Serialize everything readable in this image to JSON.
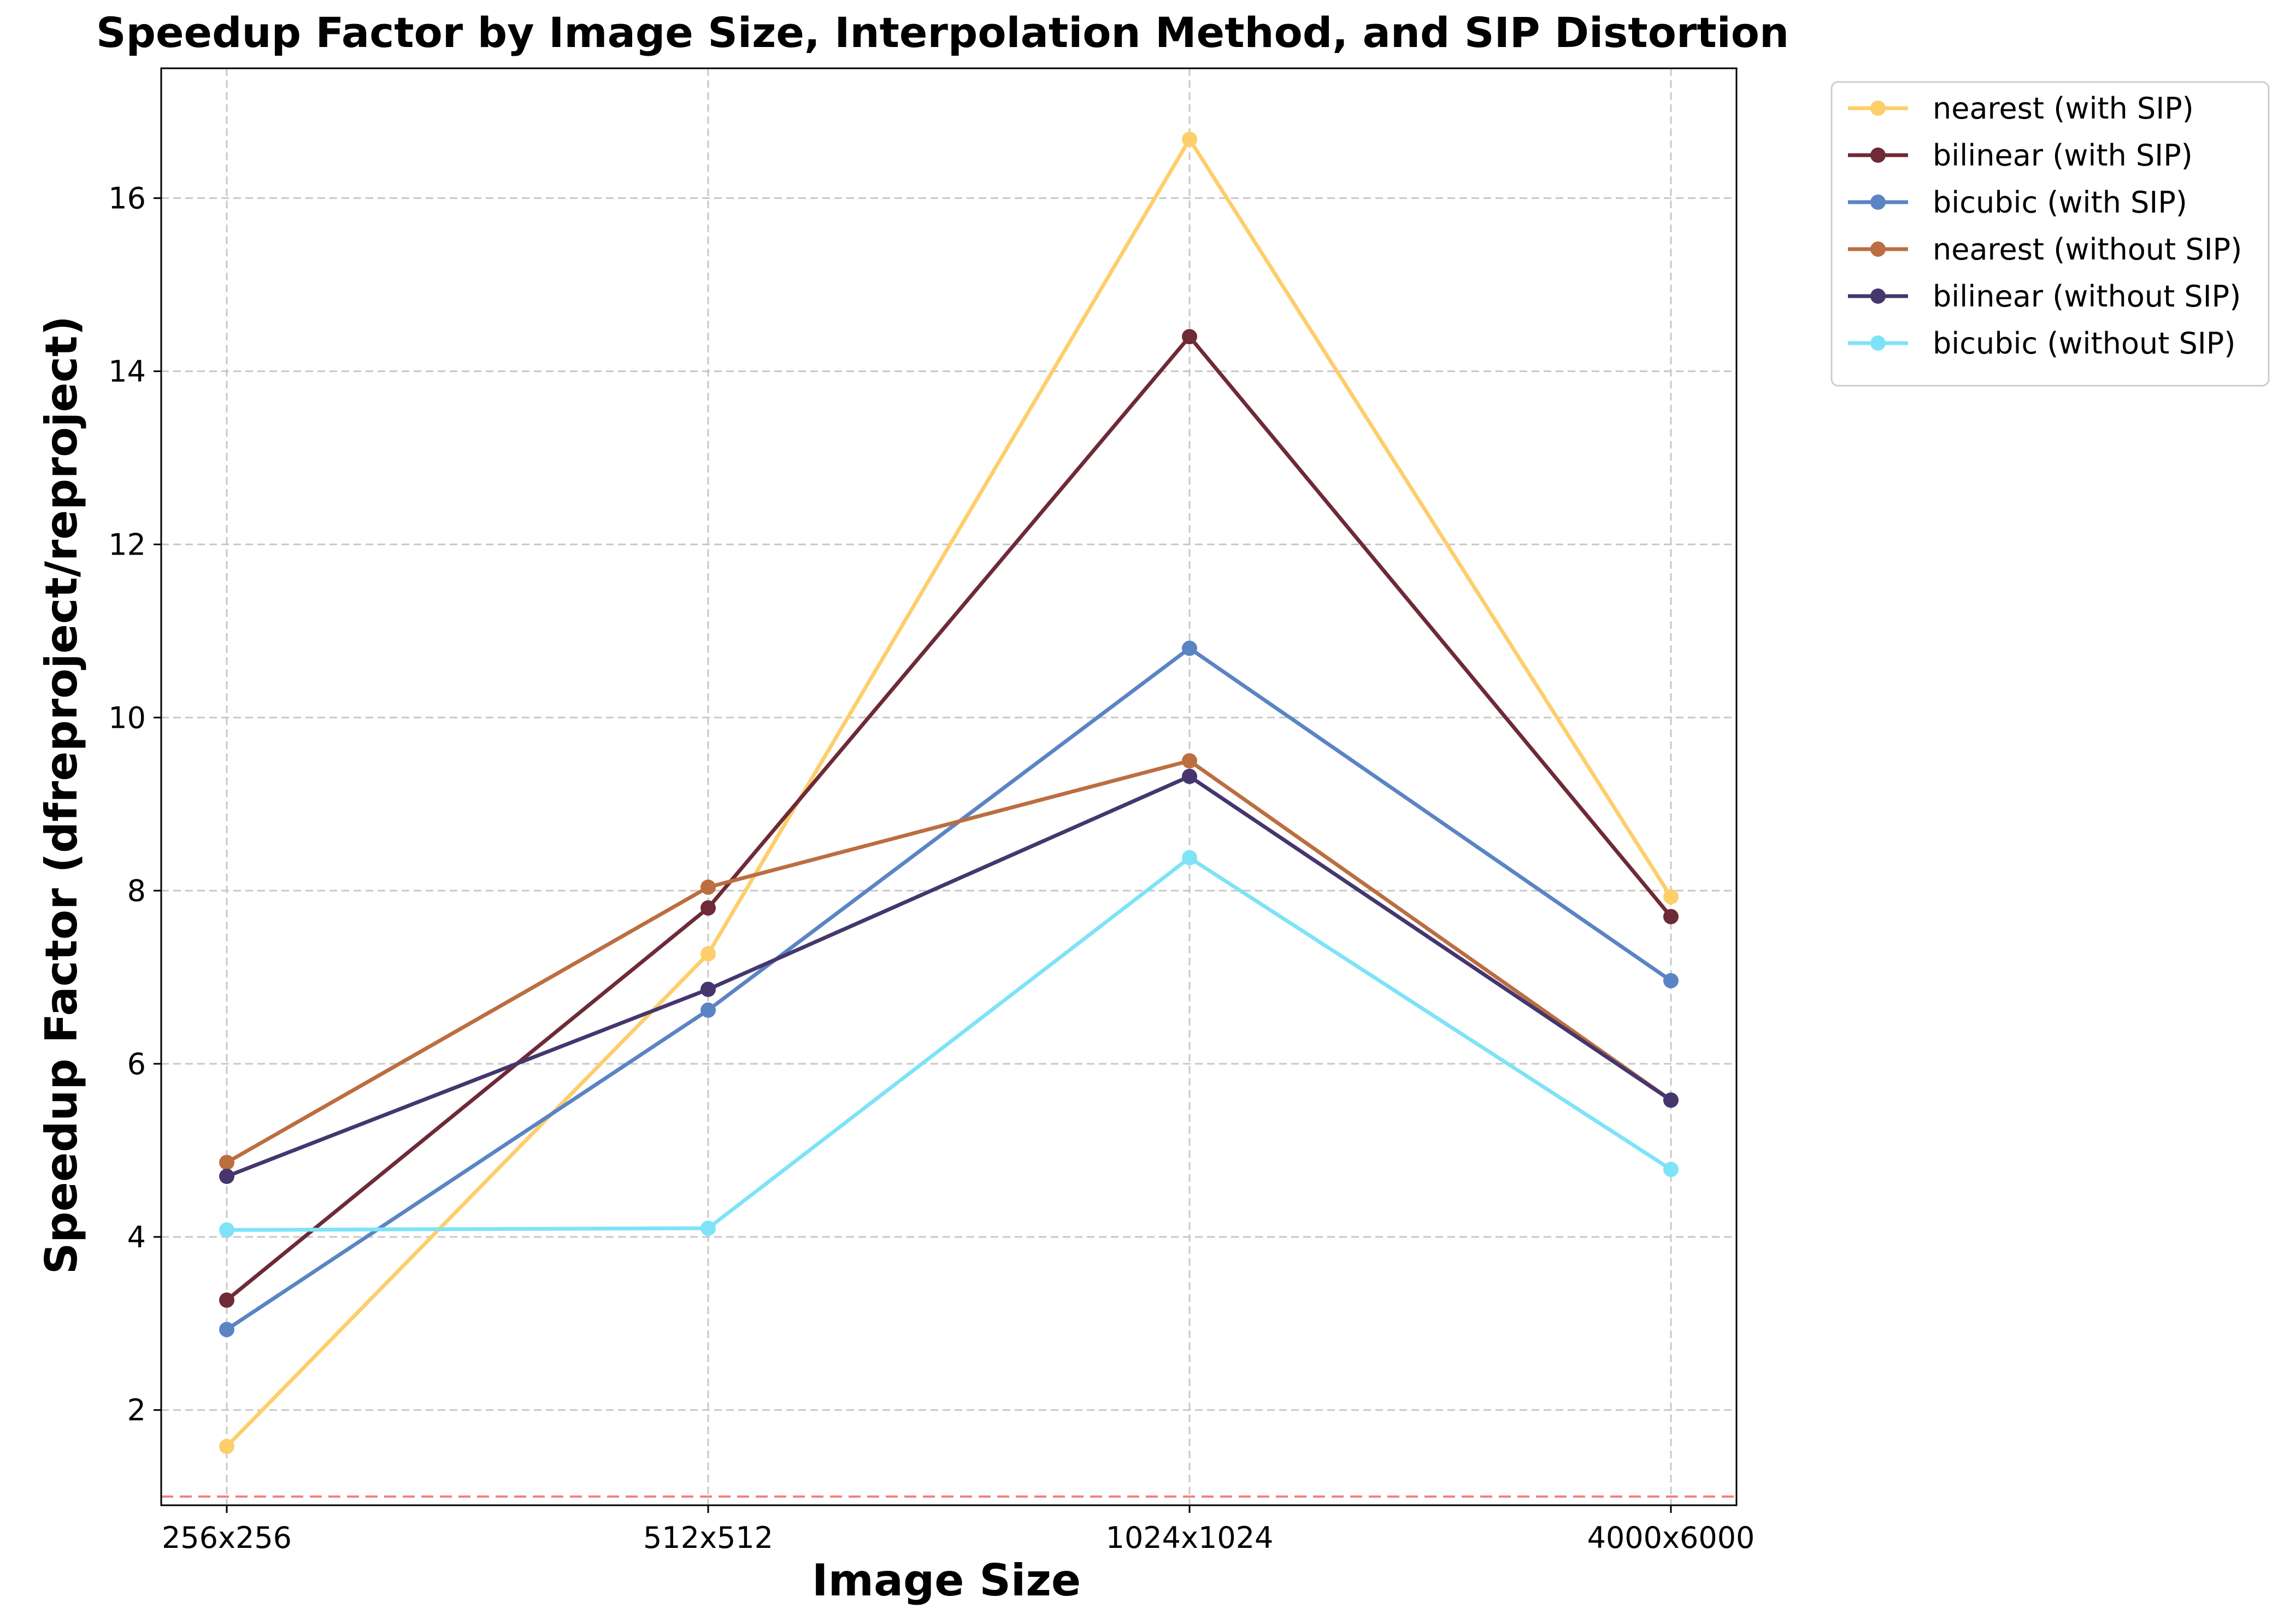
{
  "chart_data": {
    "type": "line",
    "title": "Speedup Factor by Image Size, Interpolation Method, and SIP Distortion",
    "xlabel": "Image Size",
    "ylabel": "Speedup Factor (dfreproject/reproject)",
    "categories": [
      "256x256",
      "512x512",
      "1024x1024",
      "4000x6000"
    ],
    "ylim": [
      0.9,
      17.5
    ],
    "yticks": [
      2,
      4,
      6,
      8,
      10,
      12,
      14,
      16
    ],
    "grid": true,
    "legend_position": "outside-right",
    "reference_line": {
      "y": 1.0,
      "color": "#f08080",
      "style": "dashed"
    },
    "series": [
      {
        "name": "nearest (with SIP)",
        "color": "#fdce6a",
        "values": [
          1.58,
          7.27,
          16.68,
          7.93
        ]
      },
      {
        "name": "bilinear (with SIP)",
        "color": "#6e2a36",
        "values": [
          3.27,
          7.8,
          14.4,
          7.7
        ]
      },
      {
        "name": "bicubic (with SIP)",
        "color": "#5b84c4",
        "values": [
          2.93,
          6.62,
          10.8,
          6.96
        ]
      },
      {
        "name": "nearest (without SIP)",
        "color": "#bb6e40",
        "values": [
          4.86,
          8.04,
          9.5,
          5.58
        ]
      },
      {
        "name": "bilinear (without SIP)",
        "color": "#45366e",
        "values": [
          4.7,
          6.86,
          9.32,
          5.58
        ]
      },
      {
        "name": "bicubic (without SIP)",
        "color": "#7ee3f7",
        "values": [
          4.08,
          4.1,
          8.38,
          4.78
        ]
      }
    ]
  }
}
